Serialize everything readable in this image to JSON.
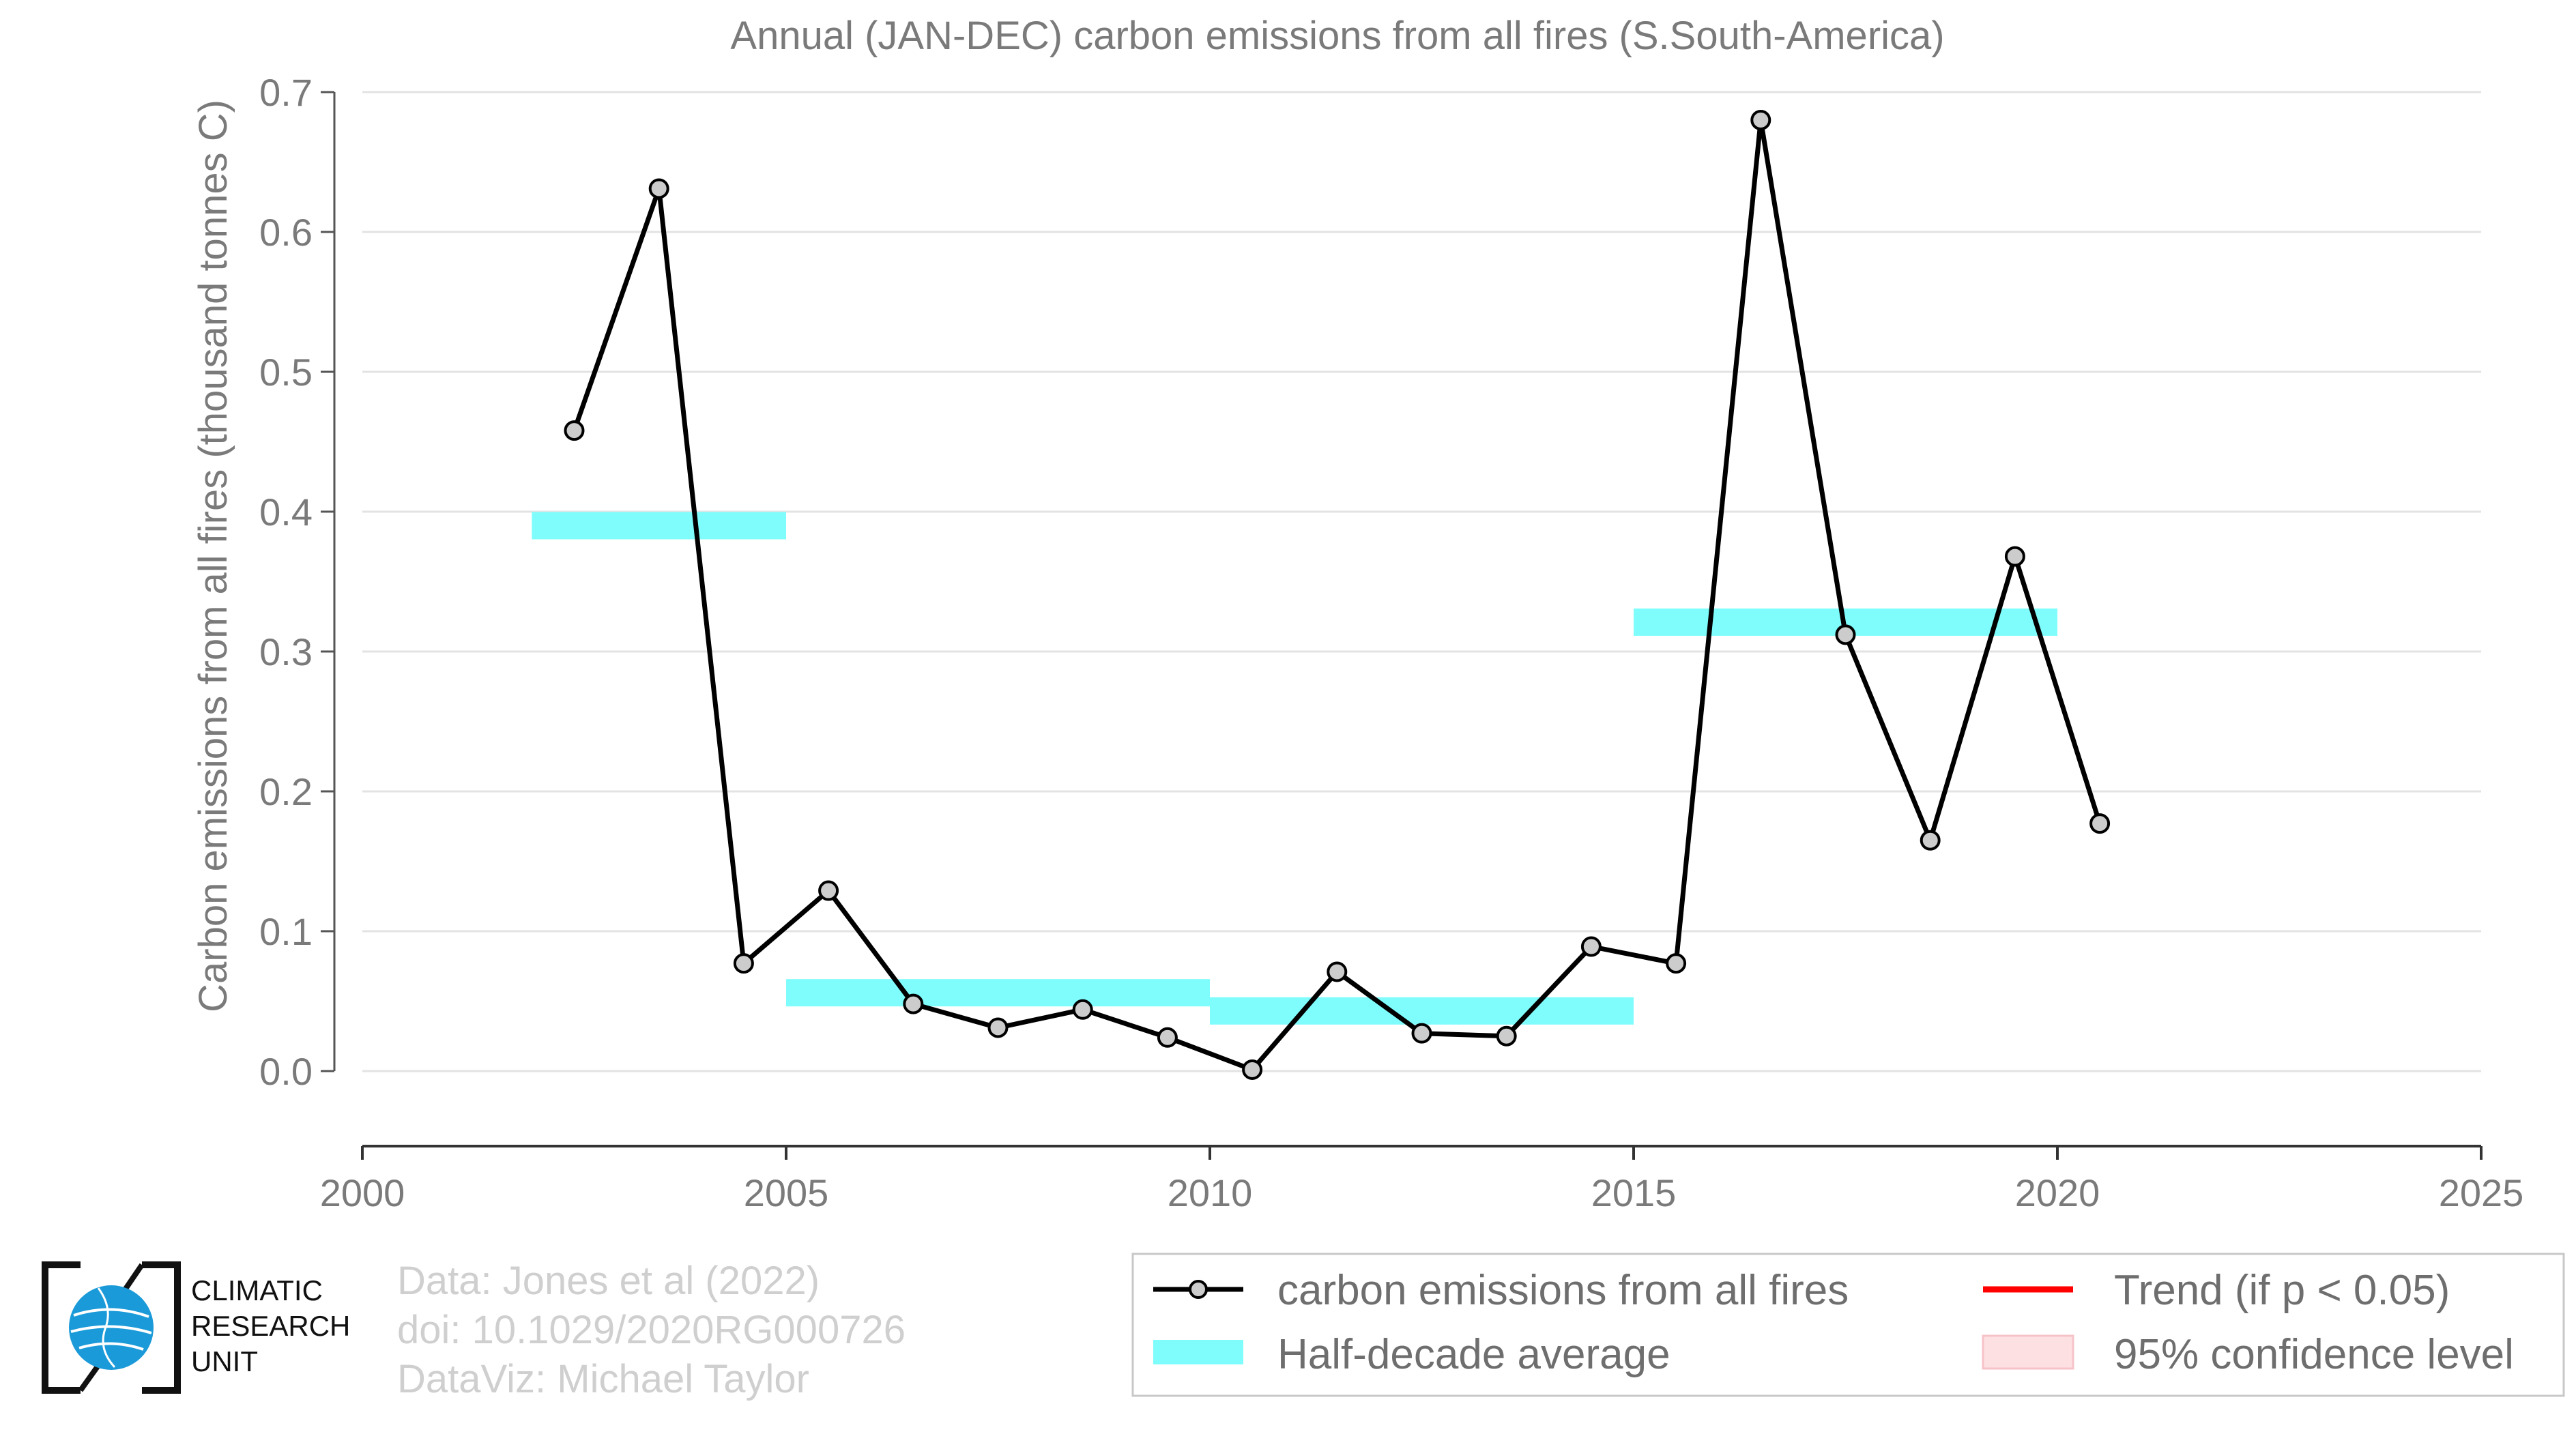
{
  "chart_data": {
    "type": "line",
    "title": "Annual (JAN-DEC) carbon emissions from all fires (S.South-America)",
    "ylabel": "Carbon emissions from all fires (thousand tonnes C)",
    "xlabel": "",
    "xlim": [
      2000,
      2025
    ],
    "ylim": [
      -0.05,
      0.7
    ],
    "xticks": [
      "2000",
      "2005",
      "2010",
      "2015",
      "2020",
      "2025"
    ],
    "yticks": [
      "0.0",
      "0.1",
      "0.2",
      "0.3",
      "0.4",
      "0.5",
      "0.6",
      "0.7"
    ],
    "grid": "horizontal",
    "series": [
      {
        "name": "carbon emissions from all fires",
        "color": "#000000",
        "x": [
          2002.5,
          2003.5,
          2004.5,
          2005.5,
          2006.5,
          2007.5,
          2008.5,
          2009.5,
          2010.5,
          2011.5,
          2012.5,
          2013.5,
          2014.5,
          2015.5,
          2016.5,
          2017.5,
          2018.5,
          2019.5,
          2020.5
        ],
        "values": [
          0.458,
          0.631,
          0.077,
          0.129,
          0.048,
          0.031,
          0.044,
          0.024,
          0.001,
          0.071,
          0.027,
          0.025,
          0.089,
          0.077,
          0.68,
          0.312,
          0.165,
          0.368,
          0.177
        ]
      }
    ],
    "half_decade_average": {
      "name": "Half-decade average",
      "color": "#7ffcfc",
      "segments": [
        {
          "x0": 2002,
          "x1": 2005,
          "value": 0.39
        },
        {
          "x0": 2005,
          "x1": 2010,
          "value": 0.056
        },
        {
          "x0": 2010,
          "x1": 2015,
          "value": 0.043
        },
        {
          "x0": 2015,
          "x1": 2020,
          "value": 0.321
        }
      ]
    },
    "legend": {
      "placement": "bottom-right",
      "entries": [
        {
          "label": "carbon emissions from all fires",
          "kind": "line-marker",
          "color": "#000000"
        },
        {
          "label": "Trend (if p < 0.05)",
          "kind": "line",
          "color": "#ff0000"
        },
        {
          "label": "Half-decade average",
          "kind": "band",
          "color": "#7ffcfc"
        },
        {
          "label": "95% confidence level",
          "kind": "band",
          "color": "#fde0e2"
        }
      ]
    }
  },
  "credits": {
    "line1": "Data: Jones et al (2022)",
    "line2": "doi: 10.1029/2020RG000726",
    "line3": "DataViz: Michael Taylor"
  },
  "logo": {
    "line1": "CLIMATIC",
    "line2": "RESEARCH",
    "line3": "UNIT",
    "icon": "globe-icon"
  }
}
